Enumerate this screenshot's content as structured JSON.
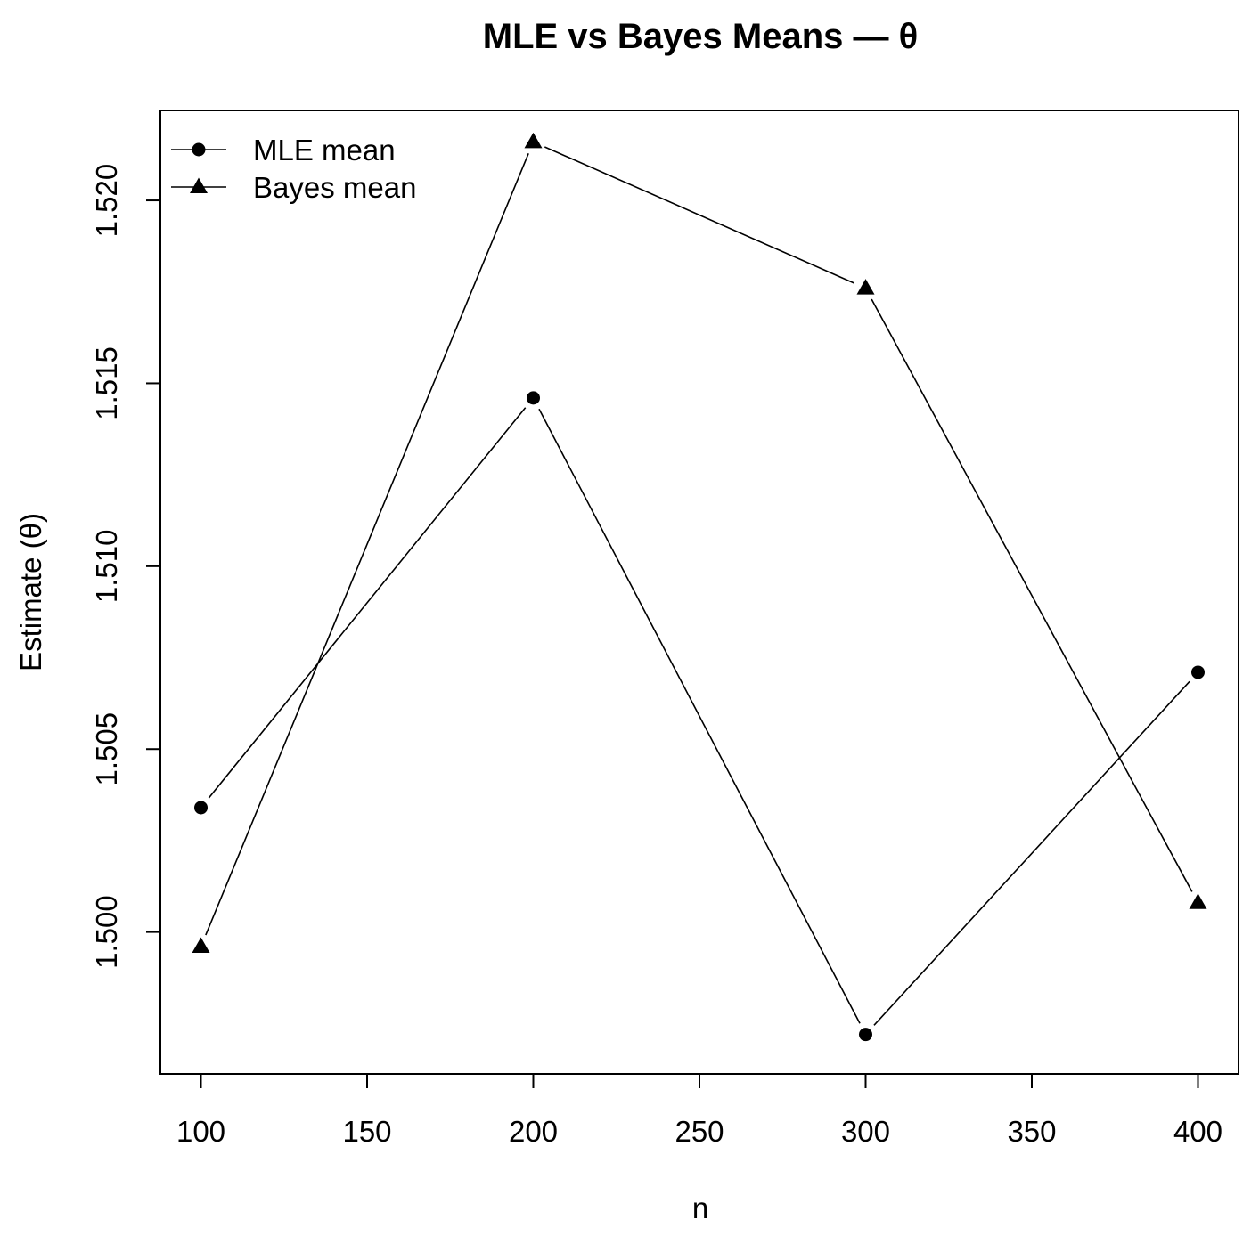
{
  "chart_data": {
    "type": "line",
    "title": "MLE vs Bayes Means — θ",
    "xlabel": "n",
    "ylabel": "Estimate (θ)",
    "x": [
      100,
      200,
      300,
      400
    ],
    "series": [
      {
        "name": "MLE mean",
        "marker": "circle",
        "values": [
          1.5034,
          1.5146,
          1.4972,
          1.5071
        ]
      },
      {
        "name": "Bayes mean",
        "marker": "triangle",
        "values": [
          1.4996,
          1.5216,
          1.5176,
          1.5008
        ]
      }
    ],
    "xticks": [
      100,
      150,
      200,
      250,
      300,
      350,
      400
    ],
    "xtick_labels": [
      "100",
      "150",
      "200",
      "250",
      "300",
      "350",
      "400"
    ],
    "yticks": [
      1.5,
      1.505,
      1.51,
      1.515,
      1.52
    ],
    "ytick_labels": [
      "1.500",
      "1.505",
      "1.510",
      "1.515",
      "1.520"
    ],
    "xlim": [
      87.8,
      412.2
    ],
    "ylim": [
      1.49612,
      1.52246
    ],
    "grid": false,
    "legend_position": "top-left",
    "colors": {
      "line": "#000000",
      "marker": "#000000",
      "frame": "#000000"
    }
  }
}
